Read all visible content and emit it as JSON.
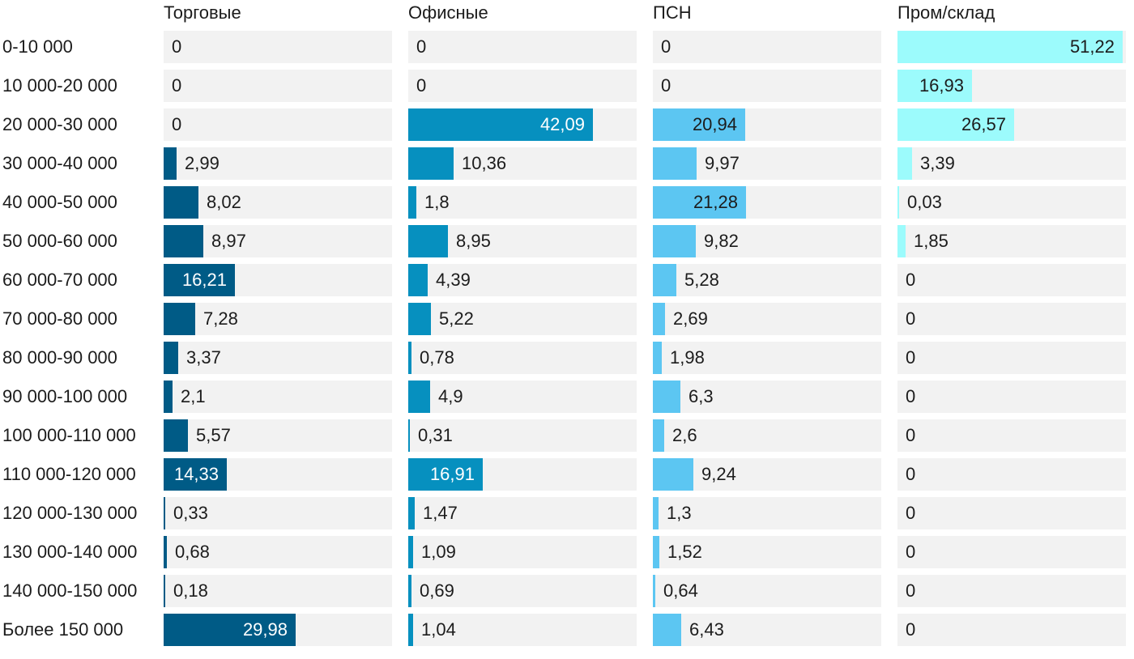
{
  "chart_data": {
    "type": "bar",
    "orientation": "horizontal",
    "layout": "small-multiples",
    "categories": [
      "0-10 000",
      "10 000-20 000",
      "20 000-30 000",
      "30 000-40 000",
      "40 000-50 000",
      "50 000-60 000",
      "60 000-70 000",
      "70 000-80 000",
      "80 000-90 000",
      "90 000-100 000",
      "100 000-110 000",
      "110 000-120 000",
      "120 000-130 000",
      "130 000-140 000",
      "140 000-150 000",
      "Более 150 000"
    ],
    "xlim": [
      0,
      52
    ],
    "series": [
      {
        "name": "Торговые",
        "color": "#005b86",
        "label_on_bar_color": "#ffffff",
        "values": [
          0,
          0,
          0,
          2.99,
          8.02,
          8.97,
          16.21,
          7.28,
          3.37,
          2.1,
          5.57,
          14.33,
          0.33,
          0.68,
          0.18,
          29.98
        ],
        "labels": [
          "0",
          "0",
          "0",
          "2,99",
          "8,02",
          "8,97",
          "16,21",
          "7,28",
          "3,37",
          "2,1",
          "5,57",
          "14,33",
          "0,33",
          "0,68",
          "0,18",
          "29,98"
        ]
      },
      {
        "name": "Офисные",
        "color": "#0690bf",
        "label_on_bar_color": "#ffffff",
        "values": [
          0,
          0,
          42.09,
          10.36,
          1.8,
          8.95,
          4.39,
          5.22,
          0.78,
          4.9,
          0.31,
          16.91,
          1.47,
          1.09,
          0.69,
          1.04
        ],
        "labels": [
          "0",
          "0",
          "42,09",
          "10,36",
          "1,8",
          "8,95",
          "4,39",
          "5,22",
          "0,78",
          "4,9",
          "0,31",
          "16,91",
          "1,47",
          "1,09",
          "0,69",
          "1,04"
        ]
      },
      {
        "name": "ПСН",
        "color": "#5cc6f2",
        "label_on_bar_color": "#1c1c1c",
        "values": [
          0,
          0,
          20.94,
          9.97,
          21.28,
          9.82,
          5.28,
          2.69,
          1.98,
          6.3,
          2.6,
          9.24,
          1.3,
          1.52,
          0.64,
          6.43
        ],
        "labels": [
          "0",
          "0",
          "20,94",
          "9,97",
          "21,28",
          "9,82",
          "5,28",
          "2,69",
          "1,98",
          "6,3",
          "2,6",
          "9,24",
          "1,3",
          "1,52",
          "0,64",
          "6,43"
        ]
      },
      {
        "name": "Пром/склад",
        "color": "#9cfbfc",
        "label_on_bar_color": "#1c1c1c",
        "values": [
          51.22,
          16.93,
          26.57,
          3.39,
          0.03,
          1.85,
          0,
          0,
          0,
          0,
          0,
          0,
          0,
          0,
          0,
          0
        ],
        "labels": [
          "51,22",
          "16,93",
          "26,57",
          "3,39",
          "0,03",
          "1,85",
          "0",
          "0",
          "0",
          "0",
          "0",
          "0",
          "0",
          "0",
          "0",
          "0"
        ]
      }
    ]
  }
}
